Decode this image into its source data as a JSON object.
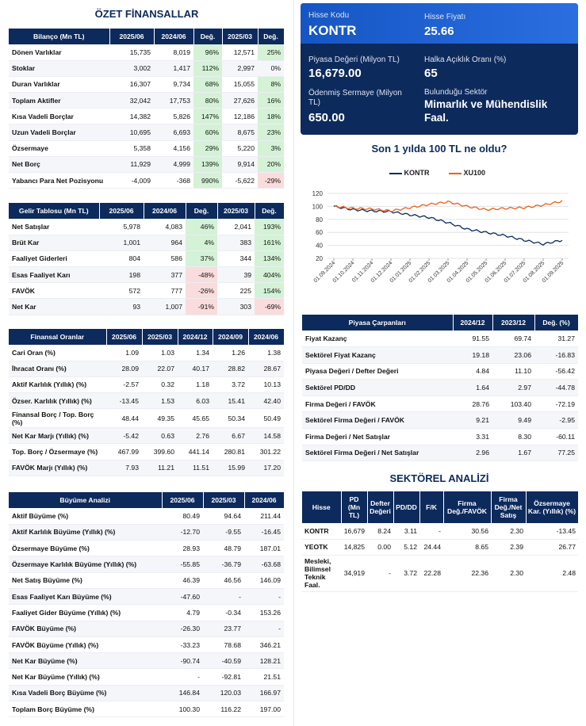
{
  "ozet": {
    "title": "ÖZET FİNANSALLAR",
    "headers": [
      "Bilanço (Mn TL)",
      "2025/06",
      "2024/06",
      "Değ.",
      "2025/03",
      "Değ."
    ],
    "rows": [
      [
        "Dönen Varlıklar",
        "15,735",
        "8,019",
        "96%",
        "12,571",
        "25%"
      ],
      [
        "Stoklar",
        "3,002",
        "1,417",
        "112%",
        "2,997",
        "0%"
      ],
      [
        "Duran Varlıklar",
        "16,307",
        "9,734",
        "68%",
        "15,055",
        "8%"
      ],
      [
        "Toplam Aktifler",
        "32,042",
        "17,753",
        "80%",
        "27,626",
        "16%"
      ],
      [
        "Kısa Vadeli Borçlar",
        "14,382",
        "5,826",
        "147%",
        "12,186",
        "18%"
      ],
      [
        "Uzun Vadeli Borçlar",
        "10,695",
        "6,693",
        "60%",
        "8,675",
        "23%"
      ],
      [
        "Özsermaye",
        "5,358",
        "4,156",
        "29%",
        "5,220",
        "3%"
      ],
      [
        "Net Borç",
        "11,929",
        "4,999",
        "139%",
        "9,914",
        "20%"
      ],
      [
        "Yabancı Para Net Pozisyonu",
        "-4,009",
        "-368",
        "990%",
        "-5,622",
        "-29%"
      ]
    ]
  },
  "gelir": {
    "headers": [
      "Gelir Tablosu (Mn TL)",
      "2025/06",
      "2024/06",
      "Değ.",
      "2025/03",
      "Değ."
    ],
    "rows": [
      [
        "Net Satışlar",
        "5,978",
        "4,083",
        "46%",
        "2,041",
        "193%"
      ],
      [
        "Brüt Kar",
        "1,001",
        "964",
        "4%",
        "383",
        "161%"
      ],
      [
        "Faaliyet Giderleri",
        "804",
        "586",
        "37%",
        "344",
        "134%"
      ],
      [
        "Esas Faaliyet Karı",
        "198",
        "377",
        "-48%",
        "39",
        "404%"
      ],
      [
        "FAVÖK",
        "572",
        "777",
        "-26%",
        "225",
        "154%"
      ],
      [
        "Net Kar",
        "93",
        "1,007",
        "-91%",
        "303",
        "-69%"
      ]
    ]
  },
  "oranlar": {
    "headers": [
      "Finansal Oranlar",
      "2025/06",
      "2025/03",
      "2024/12",
      "2024/09",
      "2024/06"
    ],
    "rows": [
      [
        "Cari Oran (%)",
        "1.09",
        "1.03",
        "1.34",
        "1.26",
        "1.38"
      ],
      [
        "İhracat Oranı (%)",
        "28.09",
        "22.07",
        "40.17",
        "28.82",
        "28.67"
      ],
      [
        "Aktif Karlılık (Yıllık) (%)",
        "-2.57",
        "0.32",
        "1.18",
        "3.72",
        "10.13"
      ],
      [
        "Özser. Karlılık (Yıllık) (%)",
        "-13.45",
        "1.53",
        "6.03",
        "15.41",
        "42.40"
      ],
      [
        "Finansal Borç / Top. Borç (%)",
        "48.44",
        "49.35",
        "45.65",
        "50.34",
        "50.49"
      ],
      [
        "Net Kar Marjı (Yıllık) (%)",
        "-5.42",
        "0.63",
        "2.76",
        "6.67",
        "14.58"
      ],
      [
        "Top. Borç / Özsermaye (%)",
        "467.99",
        "399.60",
        "441.14",
        "280.81",
        "301.22"
      ],
      [
        "FAVÖK Marjı (Yıllık) (%)",
        "7.93",
        "11.21",
        "11.51",
        "15.99",
        "17.20"
      ]
    ]
  },
  "buyume": {
    "headers": [
      "Büyüme Analizi",
      "2025/06",
      "2025/03",
      "2024/06"
    ],
    "rows": [
      [
        "Aktif Büyüme (%)",
        "80.49",
        "94.64",
        "211.44"
      ],
      [
        "Aktif Karlılık Büyüme (Yıllık) (%)",
        "-12.70",
        "-9.55",
        "-16.45"
      ],
      [
        "Özsermaye Büyüme (%)",
        "28.93",
        "48.79",
        "187.01"
      ],
      [
        "Özsermaye Karlılık Büyüme (Yıllık) (%)",
        "-55.85",
        "-36.79",
        "-63.68"
      ],
      [
        "Net Satış Büyüme (%)",
        "46.39",
        "46.56",
        "146.09"
      ],
      [
        "Esas Faaliyet Karı Büyüme (%)",
        "-47.60",
        "-",
        "-"
      ],
      [
        "Faaliyet Gider Büyüme (Yıllık) (%)",
        "4.79",
        "-0.34",
        "153.26"
      ],
      [
        "FAVÖK Büyüme (%)",
        "-26.30",
        "23.77",
        "-"
      ],
      [
        "FAVÖK Büyüme (Yıllık) (%)",
        "-33.23",
        "78.68",
        "346.21"
      ],
      [
        "Net Kar Büyüme (%)",
        "-90.74",
        "-40.59",
        "128.21"
      ],
      [
        "Net Kar Büyüme (Yıllık) (%)",
        "-",
        "-92.81",
        "21.51"
      ],
      [
        "Kısa Vadeli Borç Büyüme (%)",
        "146.84",
        "120.03",
        "166.97"
      ],
      [
        "Toplam Borç Büyüme (%)",
        "100.30",
        "116.22",
        "197.00"
      ]
    ]
  },
  "card": {
    "kod_label": "Hisse Kodu",
    "kod": "KONTR",
    "fiyat_label": "Hisse Fiyatı",
    "fiyat": "25.66",
    "pd_label": "Piyasa Değeri (Milyon TL)",
    "pd": "16,679.00",
    "halka_label": "Halka Açıklık Oranı (%)",
    "halka": "65",
    "sermaye_label": "Ödenmiş Sermaye (Milyon TL)",
    "sermaye": "650.00",
    "sektor_label": "Bulunduğu Sektör",
    "sektor": "Mimarlık ve Mühendislik Faal."
  },
  "chart_title": "Son 1 yılda 100 TL ne oldu?",
  "chart_data": {
    "type": "line",
    "x": [
      "01.09.2024",
      "01.10.2024",
      "01.11.2024",
      "01.12.2024",
      "01.01.2025",
      "01.02.2025",
      "01.03.2025",
      "01.04.2025",
      "01.05.2025",
      "01.06.2025",
      "01.07.2025",
      "01.08.2025",
      "01.09.2025"
    ],
    "series": [
      {
        "name": "KONTR",
        "color": "#0d2a5c",
        "values": [
          100,
          95,
          93,
          92,
          87,
          83,
          75,
          65,
          60,
          55,
          48,
          42,
          48
        ]
      },
      {
        "name": "XU100",
        "color": "#e8621c",
        "values": [
          100,
          97,
          96,
          93,
          98,
          103,
          107,
          100,
          95,
          97,
          98,
          102,
          108
        ]
      }
    ],
    "ylim": [
      20,
      120
    ],
    "yticks": [
      "120",
      "100",
      "80",
      "60",
      "40",
      "20"
    ]
  },
  "carpan": {
    "headers": [
      "Piyasa Çarpanları",
      "2024/12",
      "2023/12",
      "Değ. (%)"
    ],
    "rows": [
      [
        "Fiyat Kazanç",
        "91.55",
        "69.74",
        "31.27"
      ],
      [
        "Sektörel Fiyat Kazanç",
        "19.18",
        "23.06",
        "-16.83"
      ],
      [
        "Piyasa Değeri / Defter Değeri",
        "4.84",
        "11.10",
        "-56.42"
      ],
      [
        "Sektörel PD/DD",
        "1.64",
        "2.97",
        "-44.78"
      ],
      [
        "Firma Değeri / FAVÖK",
        "28.76",
        "103.40",
        "-72.19"
      ],
      [
        "Sektörel Firma Değeri / FAVÖK",
        "9.21",
        "9.49",
        "-2.95"
      ],
      [
        "Firma Değeri / Net Satışlar",
        "3.31",
        "8.30",
        "-60.11"
      ],
      [
        "Sektörel Firma Değeri / Net Satışlar",
        "2.96",
        "1.67",
        "77.25"
      ]
    ]
  },
  "sektor": {
    "title": "SEKTÖREL ANALİZİ",
    "headers": [
      "Hisse",
      "PD (Mn TL)",
      "Defter Değeri",
      "PD/DD",
      "F/K",
      "Firma Değ./FAVÖK",
      "Firma Değ./Net Satış",
      "Özsermaye Kar. (Yıllık) (%)"
    ],
    "rows": [
      [
        "KONTR",
        "16,679",
        "8.24",
        "3.11",
        "-",
        "30.56",
        "2.30",
        "-13.45"
      ],
      [
        "YEOTK",
        "14,825",
        "0.00",
        "5.12",
        "24.44",
        "8.65",
        "2.39",
        "26.77"
      ],
      [
        "Mesleki, Bilimsel Teknik Faal.",
        "34,919",
        "-",
        "3.72",
        "22.28",
        "22.36",
        "2.30",
        "2.48"
      ]
    ]
  }
}
